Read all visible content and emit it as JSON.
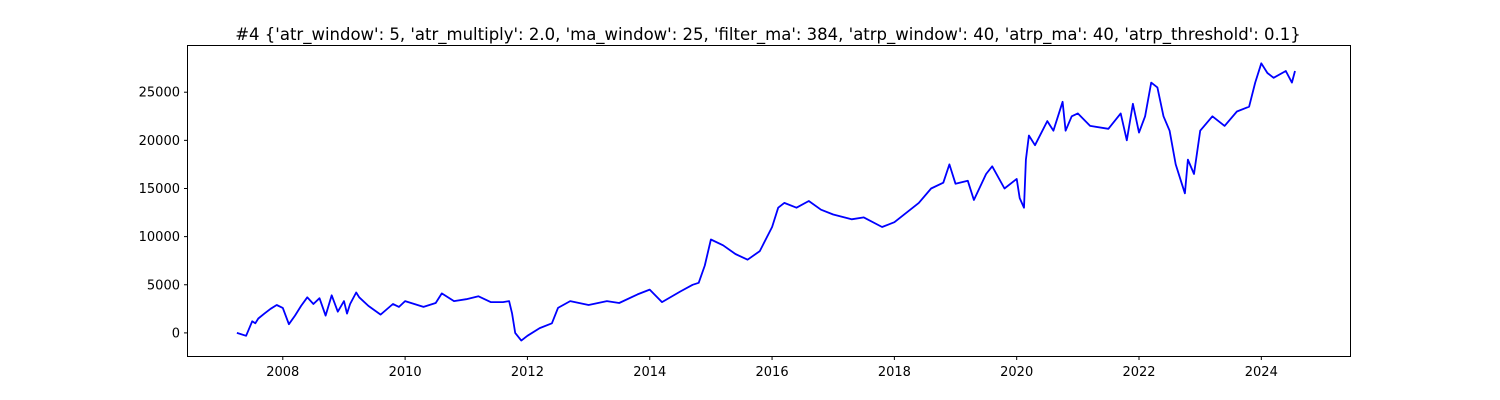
{
  "chart_data": {
    "type": "line",
    "title": "#4 {'atr_window': 5, 'atr_multiply': 2.0, 'ma_window': 25, 'filter_ma': 384, 'atrp_window': 40, 'atrp_ma': 40, 'atrp_threshold': 0.1}",
    "xlabel": "",
    "ylabel": "",
    "xlim": [
      2006.45,
      2025.45
    ],
    "ylim": [
      -2400,
      29800
    ],
    "xticks": [
      2008,
      2010,
      2012,
      2014,
      2016,
      2018,
      2020,
      2022,
      2024
    ],
    "yticks": [
      0,
      5000,
      10000,
      15000,
      20000,
      25000
    ],
    "grid": false,
    "line_color": "#0000ff",
    "series": [
      {
        "x": [
          2007.25,
          2007.4,
          2007.5,
          2007.55,
          2007.6,
          2007.7,
          2007.8,
          2007.9,
          2008.0,
          2008.1,
          2008.2,
          2008.3,
          2008.4,
          2008.5,
          2008.6,
          2008.7,
          2008.8,
          2008.9,
          2009.0,
          2009.05,
          2009.1,
          2009.2,
          2009.25,
          2009.4,
          2009.6,
          2009.8,
          2009.9,
          2010.0,
          2010.3,
          2010.5,
          2010.6,
          2010.8,
          2011.0,
          2011.2,
          2011.4,
          2011.6,
          2011.7,
          2011.75,
          2011.8,
          2011.9,
          2012.0,
          2012.2,
          2012.4,
          2012.5,
          2012.7,
          2013.0,
          2013.3,
          2013.5,
          2013.8,
          2014.0,
          2014.2,
          2014.5,
          2014.7,
          2014.8,
          2014.9,
          2015.0,
          2015.2,
          2015.4,
          2015.6,
          2015.8,
          2016.0,
          2016.1,
          2016.2,
          2016.4,
          2016.6,
          2016.8,
          2017.0,
          2017.3,
          2017.5,
          2017.8,
          2018.0,
          2018.2,
          2018.4,
          2018.6,
          2018.8,
          2018.9,
          2019.0,
          2019.2,
          2019.3,
          2019.5,
          2019.6,
          2019.8,
          2020.0,
          2020.05,
          2020.12,
          2020.15,
          2020.2,
          2020.3,
          2020.5,
          2020.6,
          2020.75,
          2020.8,
          2020.9,
          2021.0,
          2021.2,
          2021.5,
          2021.7,
          2021.8,
          2021.9,
          2022.0,
          2022.1,
          2022.2,
          2022.3,
          2022.4,
          2022.5,
          2022.6,
          2022.7,
          2022.75,
          2022.8,
          2022.9,
          2023.0,
          2023.2,
          2023.4,
          2023.6,
          2023.8,
          2023.9,
          2024.0,
          2024.1,
          2024.2,
          2024.4,
          2024.5,
          2024.55
        ],
        "values": [
          0,
          -300,
          1200,
          1000,
          1500,
          2000,
          2500,
          2900,
          2600,
          900,
          1800,
          2800,
          3700,
          3000,
          3600,
          1800,
          3900,
          2200,
          3300,
          2000,
          3000,
          4200,
          3700,
          2800,
          1900,
          3000,
          2700,
          3300,
          2700,
          3100,
          4100,
          3300,
          3500,
          3800,
          3200,
          3200,
          3300,
          2000,
          0,
          -800,
          -300,
          500,
          1000,
          2600,
          3300,
          2900,
          3300,
          3100,
          4000,
          4500,
          3200,
          4300,
          5000,
          5200,
          7000,
          9700,
          9100,
          8200,
          7600,
          8500,
          11000,
          13000,
          13500,
          13000,
          13700,
          12800,
          12300,
          11800,
          12000,
          11000,
          11500,
          12500,
          13500,
          15000,
          15600,
          17500,
          15500,
          15800,
          13800,
          16500,
          17300,
          15000,
          16000,
          14000,
          13000,
          18000,
          20500,
          19500,
          22000,
          21000,
          24000,
          21000,
          22500,
          22800,
          21500,
          21200,
          22800,
          20000,
          23800,
          20800,
          22500,
          26000,
          25500,
          22500,
          21000,
          17500,
          15500,
          14500,
          18000,
          16500,
          21000,
          22500,
          21500,
          23000,
          23500,
          26000,
          28000,
          27000,
          26500,
          27200,
          26000,
          27200
        ]
      }
    ]
  }
}
